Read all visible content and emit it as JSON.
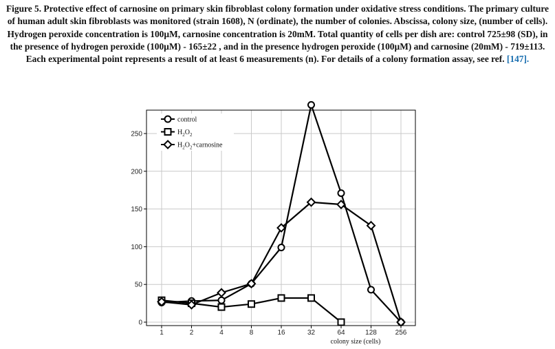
{
  "caption": {
    "label": "Figure 5.",
    "text": "Protective effect of carnosine on primary skin fibroblast colony formation under oxidative stress conditions. The primary culture of human adult skin fibroblasts was monitored (strain 1608), N (ordinate), the number of colonies. Abscissa, colony size, (number of cells). Hydrogen peroxide concentration is 100µM, carnosine concentration is 20mM. Total quantity of cells per dish are: control 725±98 (SD), in the presence of hydrogen peroxide (100µM) - 165±22 , and in the presence hydrogen peroxide (100µM) and carnosine (20mM) - 719±113. Each experimental point represents a result of at least 6 measurements (n). For details of a colony formation assay, see ref.",
    "ref": "[147]."
  },
  "chart_data": {
    "type": "line",
    "categories": [
      "1",
      "2",
      "4",
      "8",
      "16",
      "32",
      "64",
      "128",
      "256"
    ],
    "xlabel": "colony size (cells)",
    "ylabel": "",
    "ylim": [
      0,
      290
    ],
    "yticks": [
      0,
      50,
      100,
      150,
      200,
      250
    ],
    "grid": true,
    "legend_position": "top-left",
    "series": [
      {
        "name": "control",
        "marker": "circle",
        "values": [
          26,
          28,
          29,
          51,
          99,
          288,
          171,
          43,
          0
        ]
      },
      {
        "name": "H2O2",
        "marker": "square",
        "values": [
          29,
          25,
          20,
          24,
          32,
          32,
          0,
          null,
          null
        ]
      },
      {
        "name": "H2O2+carnosine",
        "marker": "diamond",
        "values": [
          27,
          23,
          39,
          51,
          125,
          159,
          156,
          128,
          0
        ]
      }
    ]
  }
}
